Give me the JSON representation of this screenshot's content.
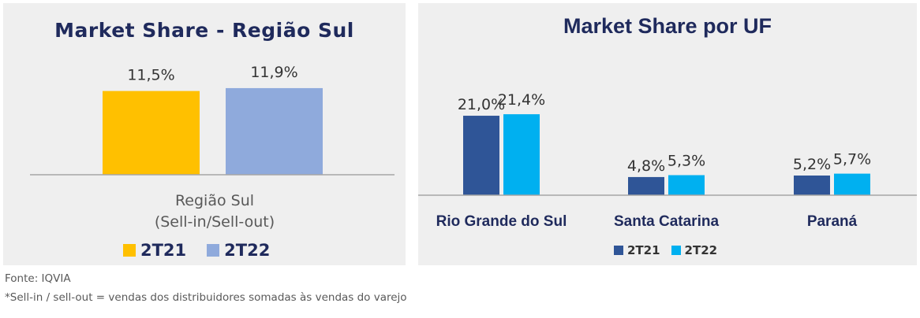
{
  "chart_data": [
    {
      "type": "bar",
      "title": "Market Share - Região Sul",
      "categories": [
        "Região Sul"
      ],
      "category_label_lines": [
        "Região Sul",
        "(Sell-in/Sell-out)"
      ],
      "series": [
        {
          "name": "2T21",
          "values": [
            11.5
          ],
          "labels": [
            "11,5%"
          ],
          "color": "#ffc000"
        },
        {
          "name": "2T22",
          "values": [
            11.9
          ],
          "labels": [
            "11,9%"
          ],
          "color": "#8faadc"
        }
      ],
      "ylim": [
        0,
        16
      ],
      "grid": false,
      "legend": "bottom"
    },
    {
      "type": "bar",
      "title": "Market Share  por UF",
      "categories": [
        "Rio Grande do Sul",
        "Santa Catarina",
        "Paraná"
      ],
      "series": [
        {
          "name": "2T21",
          "values": [
            21.0,
            4.8,
            5.2
          ],
          "labels": [
            "21,0%",
            "4,8%",
            "5,2%"
          ],
          "color": "#2f5597"
        },
        {
          "name": "2T22",
          "values": [
            21.4,
            5.3,
            5.7
          ],
          "labels": [
            "21,4%",
            "5,3%",
            "5,7%"
          ],
          "color": "#00b0f0"
        }
      ],
      "ylim": [
        0,
        26
      ],
      "grid": false,
      "legend": "bottom"
    }
  ],
  "footnotes": {
    "source": "Fonte: IQVIA",
    "note": "*Sell-in / sell-out = vendas dos distribuidores somadas às vendas do varejo"
  }
}
